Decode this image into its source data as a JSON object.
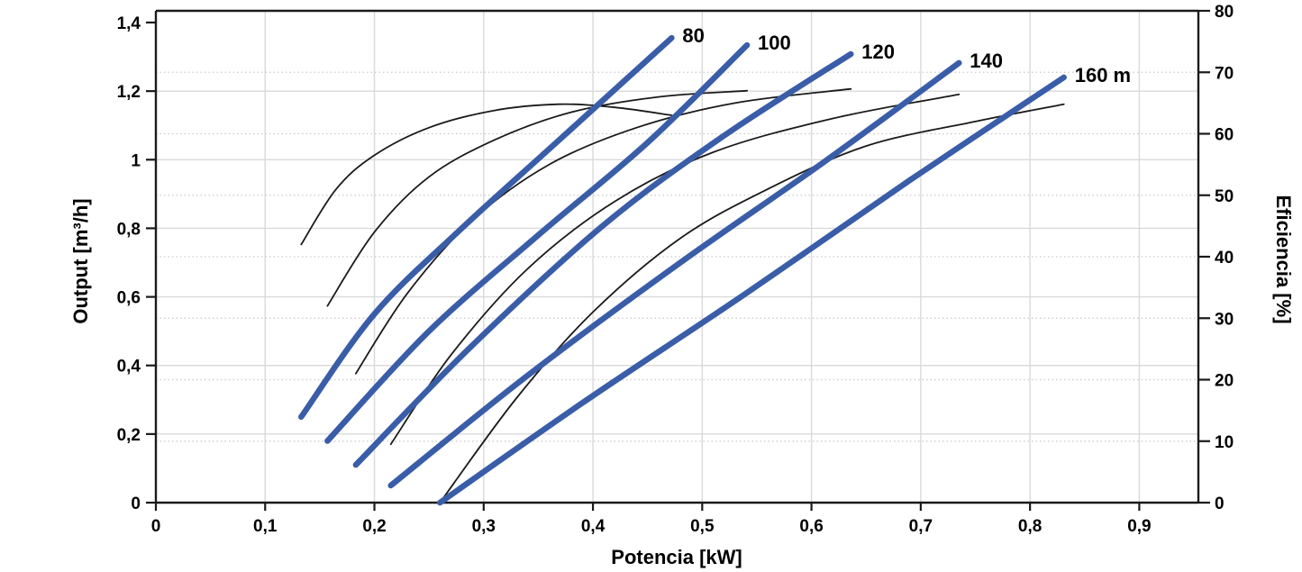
{
  "chart_data": {
    "type": "line",
    "title": "",
    "xlabel": "Potencia [kW]",
    "ylabel": "Output [m³/h]",
    "ylabel_right": "Eficiencia [%]",
    "grid": "on",
    "legend_position": "none",
    "x_axis": {
      "min": 0,
      "max": 0.954,
      "tick_values": [
        0,
        0.1,
        0.2,
        0.3,
        0.4,
        0.5,
        0.6,
        0.7,
        0.8,
        0.9
      ],
      "tick_labels": [
        "0",
        "0,1",
        "0,2",
        "0,3",
        "0,4",
        "0,5",
        "0,6",
        "0,7",
        "0,8",
        "0,9"
      ]
    },
    "y_axis_left": {
      "min": 0,
      "max": 1.433,
      "tick_values": [
        0,
        0.2,
        0.4,
        0.6,
        0.8,
        1.0,
        1.2,
        1.4
      ],
      "tick_labels": [
        "0",
        "0,2",
        "0,4",
        "0,6",
        "0,8",
        "1",
        "1,2",
        "1,4"
      ]
    },
    "y_axis_right": {
      "min": 0,
      "max": 80,
      "tick_values": [
        0,
        10,
        20,
        30,
        40,
        50,
        60,
        70,
        80
      ],
      "tick_labels": [
        "0",
        "10",
        "20",
        "30",
        "40",
        "50",
        "60",
        "70",
        "80"
      ]
    },
    "head_curves": [
      {
        "label": "80",
        "head_m": 80,
        "axis": "left",
        "points": [
          [
            0.133,
            0.25
          ],
          [
            0.2,
            0.55
          ],
          [
            0.28,
            0.8
          ],
          [
            0.37,
            1.06
          ],
          [
            0.472,
            1.355
          ]
        ]
      },
      {
        "label": "100",
        "head_m": 100,
        "axis": "left",
        "points": [
          [
            0.157,
            0.18
          ],
          [
            0.25,
            0.5
          ],
          [
            0.35,
            0.78
          ],
          [
            0.45,
            1.05
          ],
          [
            0.541,
            1.334
          ]
        ]
      },
      {
        "label": "120",
        "head_m": 120,
        "axis": "left",
        "points": [
          [
            0.183,
            0.11
          ],
          [
            0.29,
            0.46
          ],
          [
            0.41,
            0.81
          ],
          [
            0.52,
            1.07
          ],
          [
            0.636,
            1.308
          ]
        ]
      },
      {
        "label": "140",
        "head_m": 140,
        "axis": "left",
        "points": [
          [
            0.215,
            0.05
          ],
          [
            0.34,
            0.37
          ],
          [
            0.48,
            0.7
          ],
          [
            0.61,
            0.99
          ],
          [
            0.735,
            1.282
          ]
        ]
      },
      {
        "label": "160 m",
        "head_m": 160,
        "axis": "left",
        "points": [
          [
            0.26,
            0.0
          ],
          [
            0.39,
            0.29
          ],
          [
            0.54,
            0.61
          ],
          [
            0.69,
            0.94
          ],
          [
            0.831,
            1.24
          ]
        ]
      }
    ],
    "efficiency_curves": [
      {
        "for_head_m": 80,
        "axis": "right",
        "points": [
          [
            0.133,
            42
          ],
          [
            0.165,
            51
          ],
          [
            0.2,
            56.5
          ],
          [
            0.25,
            61
          ],
          [
            0.31,
            63.8
          ],
          [
            0.369,
            64.8
          ],
          [
            0.42,
            64.3
          ],
          [
            0.472,
            63.0
          ]
        ]
      },
      {
        "for_head_m": 100,
        "axis": "right",
        "points": [
          [
            0.157,
            32
          ],
          [
            0.2,
            44
          ],
          [
            0.25,
            53
          ],
          [
            0.31,
            59
          ],
          [
            0.38,
            63.5
          ],
          [
            0.46,
            66
          ],
          [
            0.541,
            67.0
          ]
        ]
      },
      {
        "for_head_m": 120,
        "axis": "right",
        "points": [
          [
            0.183,
            21
          ],
          [
            0.23,
            34
          ],
          [
            0.29,
            46
          ],
          [
            0.36,
            55
          ],
          [
            0.44,
            61
          ],
          [
            0.53,
            65
          ],
          [
            0.636,
            67.3
          ]
        ]
      },
      {
        "for_head_m": 140,
        "axis": "right",
        "points": [
          [
            0.215,
            9.5
          ],
          [
            0.27,
            24
          ],
          [
            0.34,
            38
          ],
          [
            0.42,
            49
          ],
          [
            0.51,
            57
          ],
          [
            0.62,
            62.5
          ],
          [
            0.735,
            66.4
          ]
        ]
      },
      {
        "for_head_m": 160,
        "axis": "right",
        "points": [
          [
            0.26,
            0
          ],
          [
            0.33,
            17
          ],
          [
            0.4,
            31
          ],
          [
            0.48,
            43
          ],
          [
            0.56,
            51
          ],
          [
            0.65,
            58
          ],
          [
            0.75,
            62
          ],
          [
            0.831,
            64.8
          ]
        ]
      }
    ],
    "colors": {
      "head_curve": "#3A5DA8",
      "efficiency_curve": "#1a1a1a",
      "axis": "#1a1a1a",
      "grid_solid": "#d9d9d9",
      "grid_dotted": "#c9c9c9",
      "text": "#000000",
      "background": "#ffffff"
    }
  }
}
